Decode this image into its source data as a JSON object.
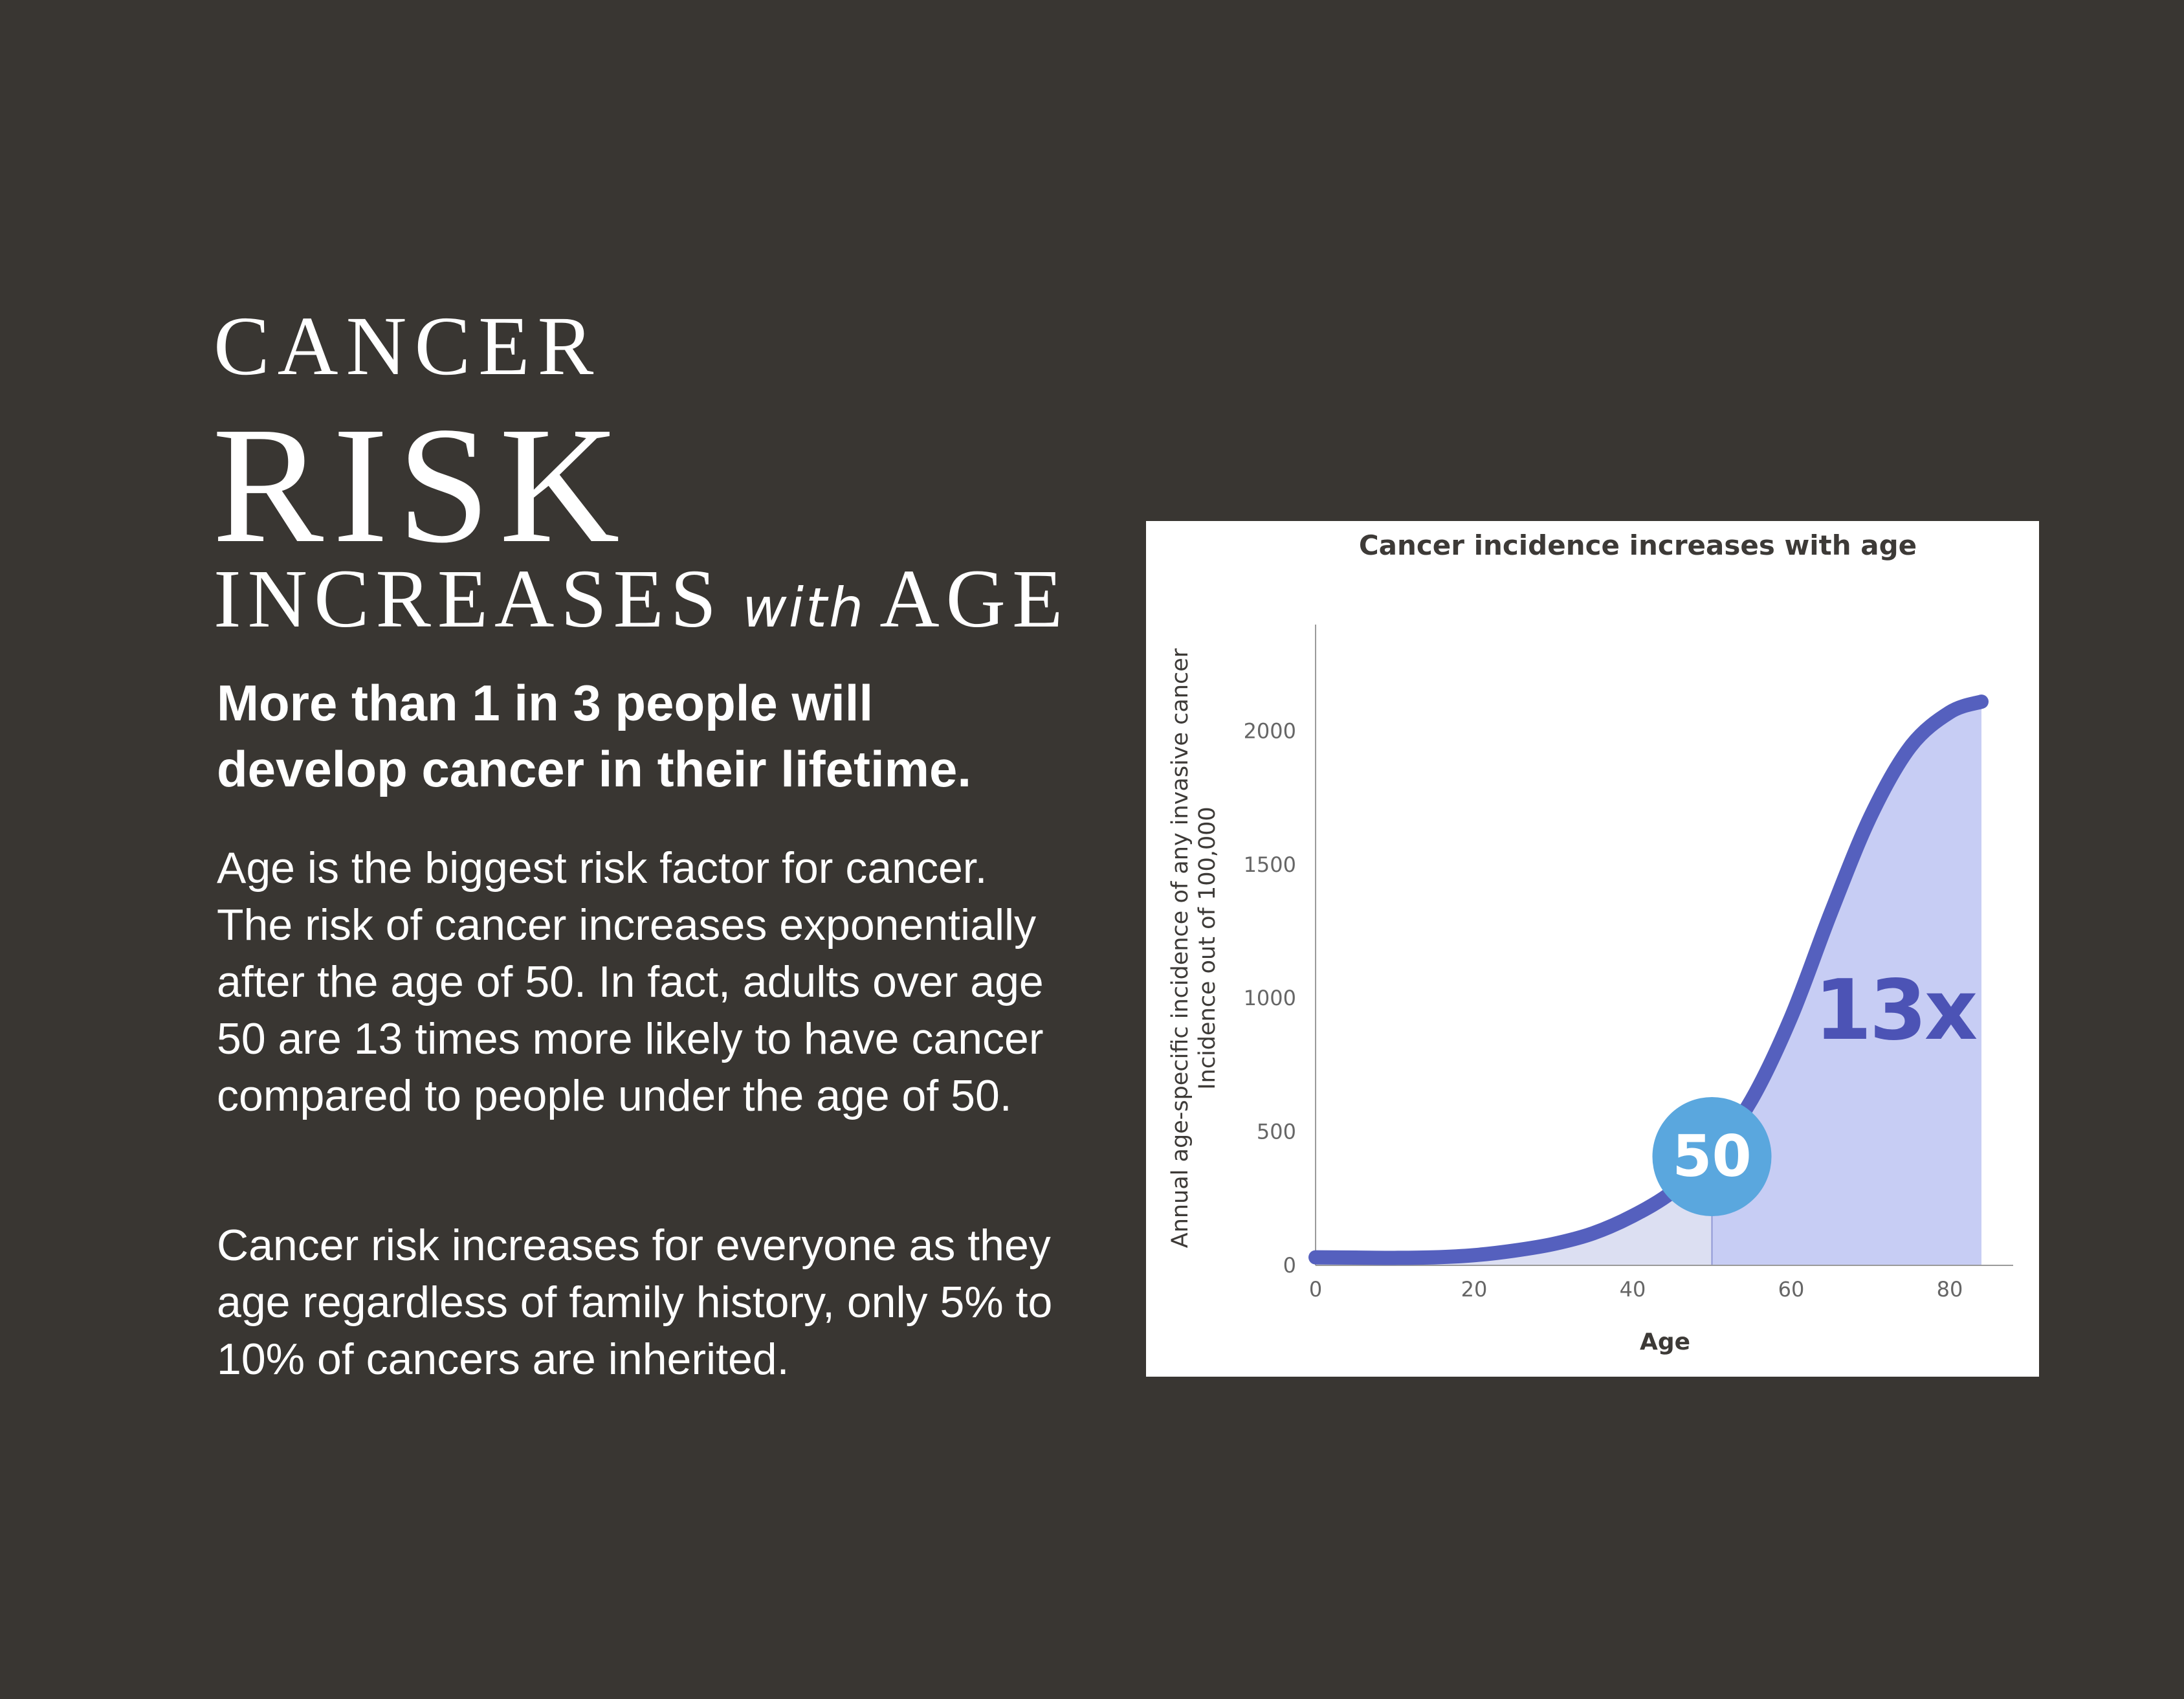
{
  "heading": {
    "line1": "CANCER",
    "line2": "RISK",
    "line3_a": "INCREASES",
    "line3_with": "with",
    "line3_b": "AGE"
  },
  "lead": "More than 1 in 3 people will develop cancer in their lifetime.",
  "paragraphs": [
    "Age is the biggest risk factor for cancer. The risk of cancer increases exponentially after the age of 50. In fact, adults over age 50 are 13 times more likely to have cancer compared to people under the age of 50.",
    "Cancer risk increases for everyone as they age regardless of family history, only 5% to 10% of cancers are inherited."
  ],
  "colors": {
    "background": "#393632",
    "line": "#5560be",
    "fill_before_50": "#dcdff2",
    "fill_after_50": "#c7cdf4",
    "marker_circle": "#5aa7de",
    "multiplier_text": "#4c53b5"
  },
  "chart_data": {
    "type": "area",
    "title": "Cancer incidence increases with age",
    "xlabel": "Age",
    "ylabel": "Annual age-specific incidence of any invasive cancer\nIncidence out of 100,000",
    "xlim": [
      0,
      88
    ],
    "ylim": [
      0,
      2350
    ],
    "x_ticks": [
      "0",
      "20",
      "40",
      "60",
      "80"
    ],
    "y_ticks": [
      "0",
      "500",
      "1000",
      "1500",
      "2000"
    ],
    "grid": false,
    "series": [
      {
        "x": [
          0,
          5,
          10,
          15,
          20,
          25,
          30,
          35,
          40,
          45,
          50,
          55,
          60,
          65,
          70,
          75,
          80,
          84
        ],
        "values": [
          30,
          29,
          28,
          30,
          38,
          55,
          80,
          120,
          185,
          275,
          410,
          620,
          930,
          1320,
          1680,
          1940,
          2070,
          2110
        ]
      }
    ],
    "annotations": [
      {
        "label": "50",
        "x": 50
      },
      {
        "label": "13x"
      }
    ]
  }
}
